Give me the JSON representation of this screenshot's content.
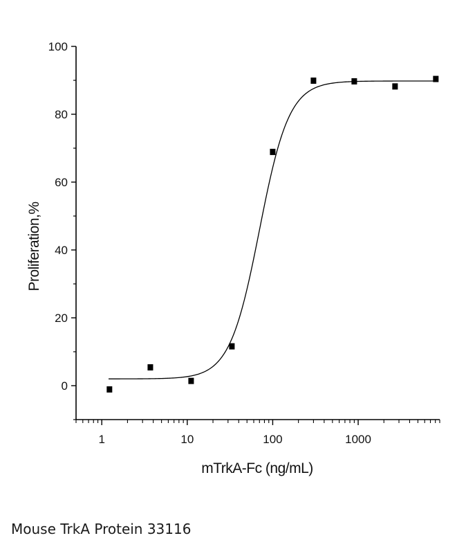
{
  "caption": "Mouse TrkA Protein 33116",
  "chart_data": {
    "type": "scatter",
    "title": "",
    "xlabel": "mTrkA-Fc (ng/mL)",
    "ylabel": "Proliferation,%",
    "xscale": "log",
    "xlim": [
      0.5,
      9000
    ],
    "ylim": [
      -10,
      100
    ],
    "xticks": [
      1,
      10,
      100,
      1000
    ],
    "xtick_labels": [
      "1",
      "10",
      "100",
      "1000"
    ],
    "yticks": [
      0,
      20,
      40,
      60,
      80,
      100
    ],
    "ytick_labels": [
      "0",
      "20",
      "40",
      "60",
      "80",
      "100"
    ],
    "grid": false,
    "legend": "none",
    "colors": {
      "marker": "#000000",
      "line": "#000000",
      "axis": "#000000"
    },
    "series": [
      {
        "points": [
          {
            "x": 1.23,
            "y": -1.0
          },
          {
            "x": 3.7,
            "y": 5.5
          },
          {
            "x": 11.1,
            "y": 1.5
          },
          {
            "x": 33.3,
            "y": 11.7
          },
          {
            "x": 100,
            "y": 69.0
          },
          {
            "x": 300,
            "y": 90.0
          },
          {
            "x": 900,
            "y": 89.8
          },
          {
            "x": 2700,
            "y": 88.3
          },
          {
            "x": 8100,
            "y": 90.5
          }
        ]
      }
    ],
    "fit": {
      "model": "4PL",
      "bottom": 2.0,
      "top": 89.8,
      "ec50": 70,
      "hill": 2.5,
      "x_range": [
        1.2,
        8100
      ]
    }
  }
}
